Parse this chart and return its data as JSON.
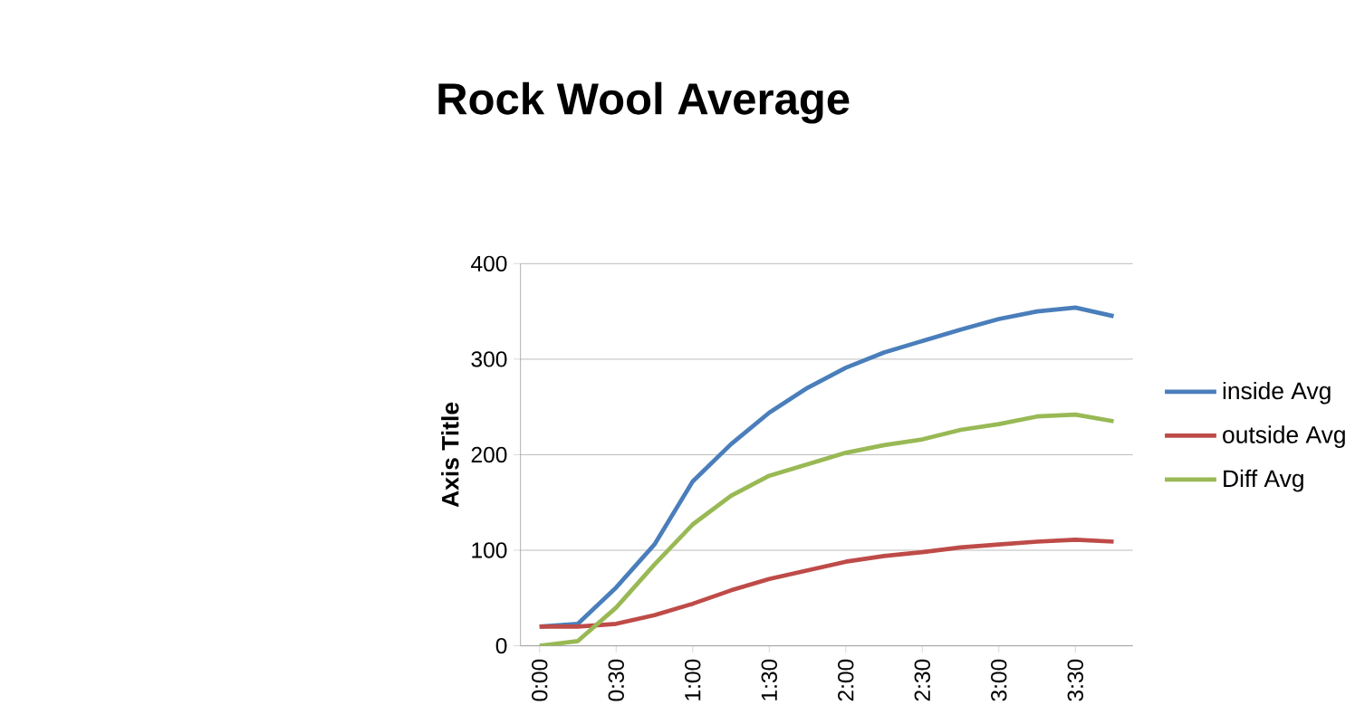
{
  "chart_data": {
    "type": "line",
    "title": "Rock Wool Average",
    "ylabel": "Axis Title",
    "categories": [
      "0:00",
      null,
      "0:30",
      null,
      "1:00",
      null,
      "1:30",
      null,
      "2:00",
      null,
      "2:30",
      null,
      "3:00",
      null,
      "3:30",
      null
    ],
    "series": [
      {
        "name": "inside Avg",
        "color": "#4a7ebb",
        "values": [
          20,
          23,
          61,
          106,
          172,
          211,
          244,
          270,
          291,
          307,
          319,
          331,
          342,
          350,
          354,
          345
        ]
      },
      {
        "name": "outside Avg",
        "color": "#be4b48",
        "values": [
          20,
          20,
          23,
          32,
          44,
          58,
          70,
          79,
          88,
          94,
          98,
          103,
          106,
          109,
          111,
          109
        ]
      },
      {
        "name": "Diff Avg",
        "color": "#98b954",
        "values": [
          0,
          5,
          40,
          85,
          127,
          157,
          178,
          190,
          202,
          210,
          216,
          226,
          232,
          240,
          242,
          235
        ]
      }
    ],
    "ylim": [
      0,
      400
    ],
    "yticks": [
      0,
      100,
      200,
      300,
      400
    ],
    "grid": "y",
    "legend": "right",
    "marker": "none",
    "line_style": "solid"
  }
}
